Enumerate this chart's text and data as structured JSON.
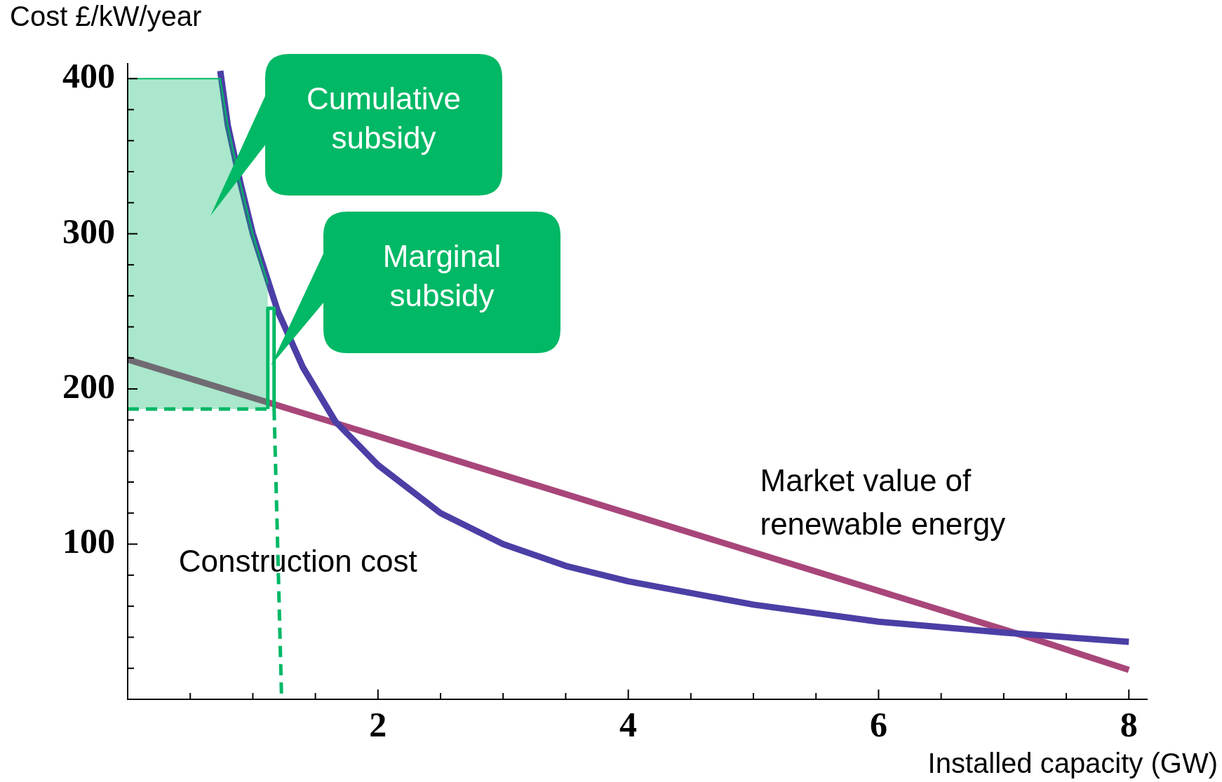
{
  "chart_data": {
    "type": "line",
    "ylabel": "Cost £/kW/year",
    "xlabel": "Installed capacity (GW)",
    "xlim": [
      0,
      8.15
    ],
    "ylim": [
      0,
      410
    ],
    "xticks": [
      {
        "value": 0,
        "label": null
      },
      {
        "value": 0.5,
        "label": null
      },
      {
        "value": 1,
        "label": null
      },
      {
        "value": 1.5,
        "label": null
      },
      2,
      {
        "value": 2.5,
        "label": null
      },
      {
        "value": 3,
        "label": null
      },
      {
        "value": 3.5,
        "label": null
      },
      4,
      {
        "value": 4.5,
        "label": null
      },
      {
        "value": 5,
        "label": null
      },
      {
        "value": 5.5,
        "label": null
      },
      6,
      {
        "value": 6.5,
        "label": null
      },
      {
        "value": 7,
        "label": null
      },
      {
        "value": 7.5,
        "label": null
      },
      8
    ],
    "yticks": [
      {
        "value": 20,
        "label": null
      },
      {
        "value": 40,
        "label": null
      },
      {
        "value": 60,
        "label": null
      },
      {
        "value": 80,
        "label": null
      },
      100,
      {
        "value": 120,
        "label": null
      },
      {
        "value": 140,
        "label": null
      },
      {
        "value": 160,
        "label": null
      },
      {
        "value": 180,
        "label": null
      },
      200,
      {
        "value": 220,
        "label": null
      },
      {
        "value": 240,
        "label": null
      },
      {
        "value": 260,
        "label": null
      },
      {
        "value": 280,
        "label": null
      },
      300,
      {
        "value": 320,
        "label": null
      },
      {
        "value": 340,
        "label": null
      },
      {
        "value": 360,
        "label": null
      },
      {
        "value": 380,
        "label": null
      },
      400
    ],
    "grid": false,
    "legend": false,
    "marker": "none",
    "series": [
      {
        "type": "area",
        "color": "#00b865",
        "x": [
          0,
          0.74,
          0.8,
          0.9,
          1.0,
          1.12
        ],
        "values": [
          400,
          400,
          370,
          333,
          300,
          268
        ]
      },
      {
        "color": "#00b865",
        "line_style": "solid",
        "x": [
          1.12,
          1.12,
          1.17,
          1.17
        ],
        "values": [
          187,
          252,
          252,
          187
        ]
      },
      {
        "color": "#00b865",
        "line_style": "dashed",
        "x": [
          0,
          1.12
        ],
        "values": [
          187,
          187
        ]
      },
      {
        "color": "#00b865",
        "line_style": "dashed",
        "x": [
          1.17,
          1.23
        ],
        "values": [
          187,
          0
        ]
      },
      {
        "name": "Construction cost",
        "color": "#4b3fa6",
        "line_style": "solid",
        "x": [
          0.74,
          0.8,
          0.9,
          1.0,
          1.2,
          1.4,
          1.66,
          2,
          2.5,
          3,
          3.5,
          4,
          5,
          6,
          7,
          8
        ],
        "values": [
          405,
          370,
          333,
          300,
          250,
          214,
          179,
          151,
          120,
          100,
          86,
          76,
          61,
          50,
          43,
          37
        ]
      },
      {
        "name": "Market value of renewable energy",
        "color": "#a8467a",
        "line_style": "solid",
        "x": [
          0,
          1.66,
          7.2,
          8
        ],
        "values": [
          219,
          178,
          40,
          19
        ]
      }
    ],
    "annotations": [
      "Cumulative subsidy",
      "Marginal subsidy"
    ]
  }
}
